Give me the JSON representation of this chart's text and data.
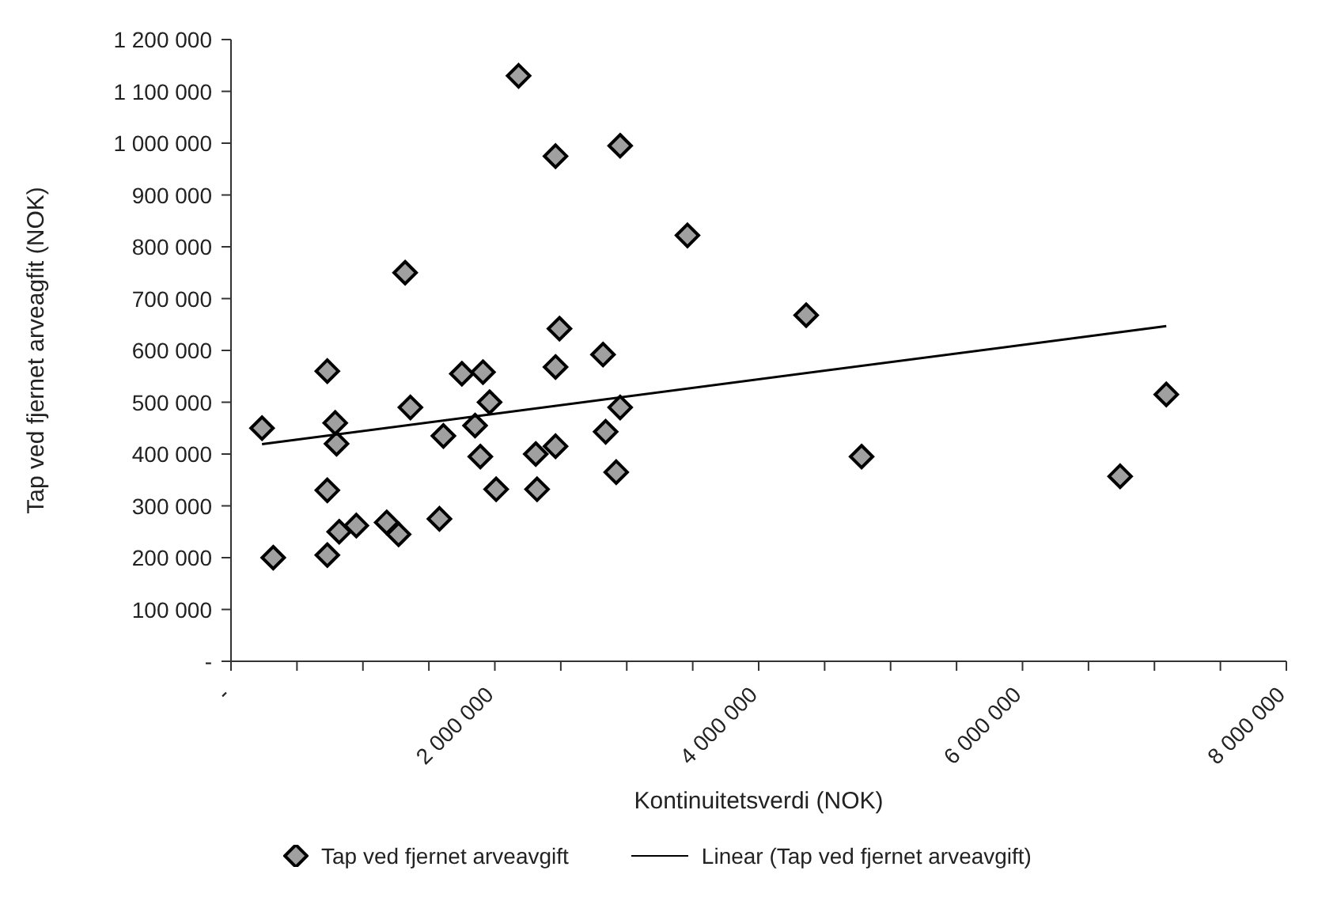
{
  "chart_data": {
    "type": "scatter",
    "xlabel": "Kontinuitetsverdi (NOK)",
    "ylabel": "Tap ved fjernet arveagfit (NOK)",
    "xlim": [
      0,
      8000000
    ],
    "xticks": [
      {
        "value": 0,
        "label": "-"
      },
      {
        "value": 500000,
        "label": null
      },
      {
        "value": 1000000,
        "label": null
      },
      {
        "value": 1500000,
        "label": null
      },
      {
        "value": 2000000,
        "label": "2 000 000"
      },
      {
        "value": 2500000,
        "label": null
      },
      {
        "value": 3000000,
        "label": null
      },
      {
        "value": 3500000,
        "label": null
      },
      {
        "value": 4000000,
        "label": "4 000 000"
      },
      {
        "value": 4500000,
        "label": null
      },
      {
        "value": 5000000,
        "label": null
      },
      {
        "value": 5500000,
        "label": null
      },
      {
        "value": 6000000,
        "label": "6 000 000"
      },
      {
        "value": 6500000,
        "label": null
      },
      {
        "value": 7000000,
        "label": null
      },
      {
        "value": 7500000,
        "label": null
      },
      {
        "value": 8000000,
        "label": "8 000 000"
      }
    ],
    "ylim": [
      0,
      1200000
    ],
    "yticks": [
      {
        "value": 0,
        "label": "-"
      },
      {
        "value": 100000,
        "label": "100 000"
      },
      {
        "value": 200000,
        "label": "200 000"
      },
      {
        "value": 300000,
        "label": "300 000"
      },
      {
        "value": 400000,
        "label": "400 000"
      },
      {
        "value": 500000,
        "label": "500 000"
      },
      {
        "value": 600000,
        "label": "600 000"
      },
      {
        "value": 700000,
        "label": "700 000"
      },
      {
        "value": 800000,
        "label": "800 000"
      },
      {
        "value": 900000,
        "label": "900 000"
      },
      {
        "value": 1000000,
        "label": "1 000 000"
      },
      {
        "value": 1100000,
        "label": "1 100 000"
      },
      {
        "value": 1200000,
        "label": "1 200 000"
      }
    ],
    "grid": false,
    "legend": "bottom",
    "marker": "diamond",
    "series": [
      {
        "name": "Tap ved fjernet arveavgift",
        "color": "#a0a0a0",
        "x": [
          235000,
          320000,
          730000,
          790000,
          800000,
          730000,
          730000,
          820000,
          950000,
          1180000,
          1270000,
          1320000,
          1360000,
          1580000,
          1610000,
          1750000,
          1910000,
          1850000,
          1960000,
          1890000,
          2010000,
          2180000,
          2460000,
          2490000,
          2460000,
          2310000,
          2460000,
          2320000,
          2820000,
          2840000,
          2950000,
          2950000,
          2920000,
          3460000,
          4360000,
          4780000,
          6740000,
          7090000
        ],
        "values": [
          450000,
          200000,
          560000,
          460000,
          420000,
          330000,
          205000,
          250000,
          262000,
          268000,
          245000,
          750000,
          490000,
          275000,
          435000,
          555000,
          558000,
          455000,
          500000,
          395000,
          332000,
          1130000,
          975000,
          642000,
          568000,
          400000,
          415000,
          332000,
          592000,
          443000,
          995000,
          490000,
          365000,
          822000,
          668000,
          395000,
          357000,
          515000
        ]
      },
      {
        "name": "Linear (Tap ved fjernet arveavgift)",
        "type": "line",
        "color": "#000000",
        "x": [
          235000,
          7090000
        ],
        "values": [
          419000,
          647000
        ],
        "marker": "none",
        "line_style": "solid"
      }
    ]
  }
}
